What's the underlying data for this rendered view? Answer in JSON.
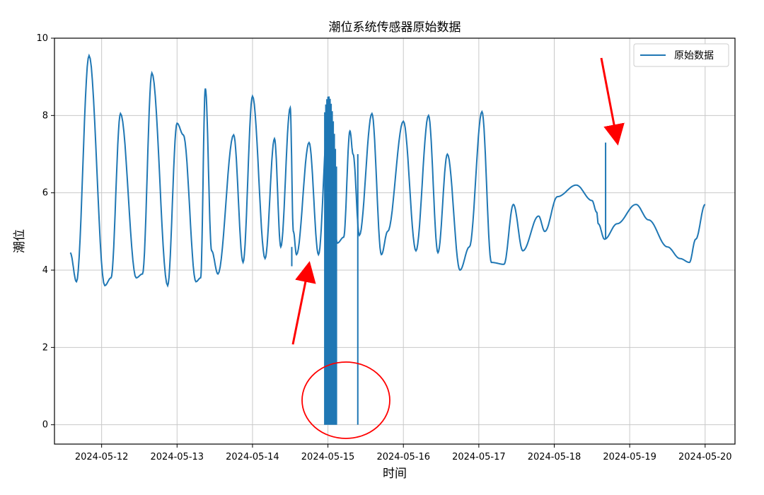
{
  "chart_data": {
    "type": "line",
    "title": "潮位系统传感器原始数据",
    "xlabel": "时间",
    "ylabel": "潮位",
    "x_ticks": [
      "2024-05-12",
      "2024-05-13",
      "2024-05-14",
      "2024-05-15",
      "2024-05-16",
      "2024-05-17",
      "2024-05-18",
      "2024-05-19",
      "2024-05-20"
    ],
    "y_ticks": [
      "0",
      "2",
      "4",
      "6",
      "8",
      "10"
    ],
    "ylim": [
      -0.5,
      10
    ],
    "xlim": [
      "2024-05-11T09:00",
      "2024-05-20T09:30"
    ],
    "grid": true,
    "legend_position": "top-right",
    "line_color": "#1f77b4",
    "annotation_color": "#ff0000",
    "series": [
      {
        "name": "原始数据",
        "x": [
          "2024-05-11T14:00",
          "2024-05-11T16:00",
          "2024-05-11T20:00",
          "2024-05-12T01:00",
          "2024-05-12T03:00",
          "2024-05-12T06:00",
          "2024-05-12T11:00",
          "2024-05-12T13:00",
          "2024-05-12T16:00",
          "2024-05-12T21:00",
          "2024-05-13T00:00",
          "2024-05-13T02:00",
          "2024-05-13T06:00",
          "2024-05-13T07:30",
          "2024-05-13T09:00",
          "2024-05-13T11:00",
          "2024-05-13T13:00",
          "2024-05-13T18:00",
          "2024-05-13T21:00",
          "2024-05-14T00:00",
          "2024-05-14T04:00",
          "2024-05-14T07:00",
          "2024-05-14T09:00",
          "2024-05-14T12:00",
          "2024-05-14T13:00",
          "2024-05-14T14:00",
          "2024-05-14T18:00",
          "2024-05-14T21:00",
          "2024-05-15T00:00",
          "2024-05-15T03:00",
          "2024-05-15T05:00",
          "2024-05-15T07:00",
          "2024-05-15T08:00",
          "2024-05-15T10:00",
          "2024-05-15T14:00",
          "2024-05-15T17:00",
          "2024-05-15T19:00",
          "2024-05-16T00:00",
          "2024-05-16T04:00",
          "2024-05-16T08:00",
          "2024-05-16T11:00",
          "2024-05-16T14:00",
          "2024-05-16T18:00",
          "2024-05-16T21:00",
          "2024-05-17T01:00",
          "2024-05-17T04:00",
          "2024-05-17T08:00",
          "2024-05-17T11:00",
          "2024-05-17T14:00",
          "2024-05-17T19:00",
          "2024-05-17T21:00",
          "2024-05-18T01:00",
          "2024-05-18T07:00",
          "2024-05-18T12:00",
          "2024-05-18T13:30",
          "2024-05-18T14:00",
          "2024-05-18T16:00",
          "2024-05-18T20:00",
          "2024-05-19T02:00",
          "2024-05-19T06:00",
          "2024-05-19T12:00",
          "2024-05-19T16:00",
          "2024-05-19T19:00",
          "2024-05-19T21:00",
          "2024-05-20T00:00"
        ],
        "values": [
          4.45,
          3.7,
          9.55,
          3.6,
          3.8,
          8.05,
          3.8,
          3.9,
          9.1,
          3.6,
          7.8,
          7.5,
          3.7,
          3.8,
          8.7,
          4.5,
          3.9,
          7.5,
          4.2,
          8.5,
          4.3,
          7.4,
          4.6,
          8.2,
          5.0,
          4.4,
          7.3,
          4.4,
          7.9,
          4.7,
          4.85,
          7.6,
          7.0,
          4.9,
          8.05,
          4.4,
          5.0,
          7.85,
          4.5,
          8.0,
          4.45,
          7.0,
          4.0,
          4.6,
          8.1,
          4.2,
          4.15,
          5.7,
          4.5,
          5.4,
          5.0,
          5.9,
          6.2,
          5.8,
          5.5,
          5.2,
          4.8,
          5.2,
          5.7,
          5.3,
          4.6,
          4.3,
          4.2,
          4.8,
          5.7
        ]
      }
    ],
    "noise_block": {
      "x_start": "2024-05-14T23:00",
      "x_end": "2024-05-15T03:00",
      "min": 0,
      "max": 8.5
    },
    "anomaly_spikes": [
      {
        "x": "2024-05-14T12:30",
        "from": 4.6,
        "to": 4.1
      },
      {
        "x": "2024-05-15T09:30",
        "from": 7.0,
        "to": 0.0
      },
      {
        "x": "2024-05-18T16:20",
        "from": 4.8,
        "to": 7.3
      }
    ]
  }
}
